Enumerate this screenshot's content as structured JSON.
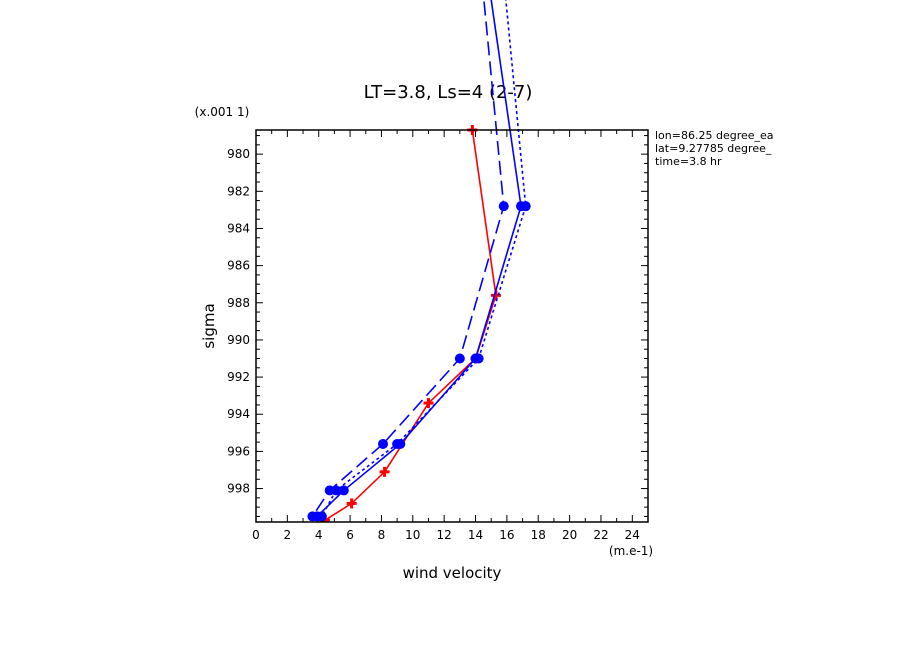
{
  "chart_data": {
    "type": "line",
    "title": "LT=3.8, Ls=4 (2-7)",
    "xlabel": "wind velocity",
    "ylabel": "sigma",
    "x_units": "(m.e-1)",
    "y_units": "(x.001 1)",
    "xlim": [
      0,
      25
    ],
    "ylim": [
      999.8,
      978.7
    ],
    "x_ticks": [
      0,
      2,
      4,
      6,
      8,
      10,
      12,
      14,
      16,
      18,
      20,
      22,
      24
    ],
    "y_ticks": [
      980,
      982,
      984,
      986,
      988,
      990,
      992,
      994,
      996,
      998
    ],
    "annotations": [
      "lon=86.25 degree_ea",
      "lat=9.27785 degree_",
      "time=3.8 hr"
    ],
    "grid": false,
    "series": [
      {
        "color": "#ff0000",
        "style": "solid",
        "marker": "cross",
        "points": [
          [
            13.8,
            978.7
          ],
          [
            15.3,
            987.6
          ],
          [
            14.0,
            991.0
          ],
          [
            11.0,
            993.4
          ],
          [
            8.2,
            997.1
          ],
          [
            6.1,
            998.8
          ],
          [
            4.4,
            999.7
          ]
        ]
      },
      {
        "color": "#0000ff",
        "style": "solid",
        "marker": "circle",
        "points": [
          [
            13.0,
            960.0
          ],
          [
            16.9,
            982.8
          ],
          [
            14.0,
            991.0
          ],
          [
            9.2,
            995.6
          ],
          [
            5.6,
            998.1
          ],
          [
            3.9,
            999.5
          ]
        ]
      },
      {
        "color": "#0000ff",
        "style": "dashed",
        "marker": "circle",
        "points": [
          [
            13.2,
            960.0
          ],
          [
            15.8,
            982.8
          ],
          [
            13.0,
            991.0
          ],
          [
            8.1,
            995.6
          ],
          [
            4.7,
            998.1
          ],
          [
            3.6,
            999.5
          ]
        ]
      },
      {
        "color": "#0000ff",
        "style": "dotted",
        "marker": "circle",
        "points": [
          [
            14.6,
            960.0
          ],
          [
            17.2,
            982.8
          ],
          [
            14.2,
            991.0
          ],
          [
            9.0,
            995.6
          ],
          [
            5.1,
            998.1
          ],
          [
            4.2,
            999.5
          ]
        ]
      }
    ]
  }
}
